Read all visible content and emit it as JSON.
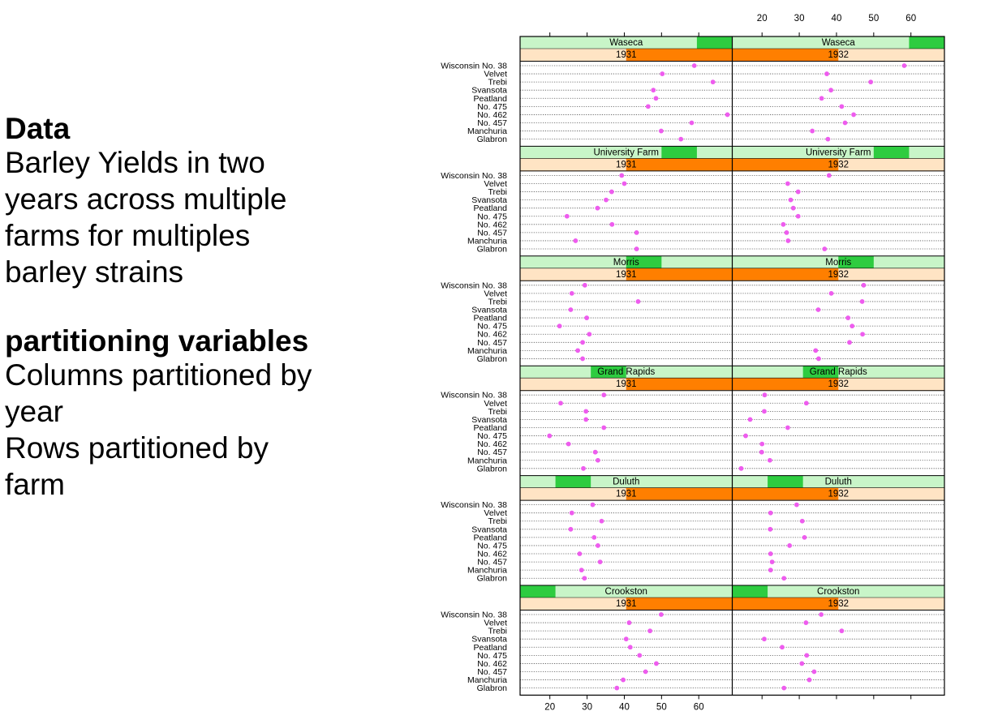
{
  "text": {
    "data_heading": "Data",
    "data_lines": [
      "Barley Yields in two",
      "years across multiple",
      "farms for multiples",
      "barley strains"
    ],
    "partition_heading": "partitioning variables",
    "partition_lines": [
      "Columns partitioned by",
      "year",
      "Rows partitioned by",
      "farm"
    ]
  },
  "colors": {
    "strip_bg": "#c8f5c8",
    "strip_fg": "#2ecc40",
    "year_bg": "#ffe4c4",
    "year_fg": "#ff7f00",
    "point": "#ee5cee"
  },
  "chart_data": {
    "type": "scatter",
    "subtype": "dot plot (trellis)",
    "xlim": [
      12,
      69
    ],
    "x_ticks": [
      20,
      30,
      40,
      50,
      60
    ],
    "x_tick_labels": [
      "20",
      "30",
      "40",
      "50",
      "60"
    ],
    "grid": true,
    "varieties": [
      "Wisconsin No. 38",
      "Velvet",
      "Trebi",
      "Svansota",
      "Peatland",
      "No. 475",
      "No. 462",
      "No. 457",
      "Manchuria",
      "Glabron"
    ],
    "years": [
      "1931",
      "1932"
    ],
    "sites": [
      "Waseca",
      "University Farm",
      "Morris",
      "Grand Rapids",
      "Duluth",
      "Crookston"
    ],
    "panels": [
      {
        "site": "Waseca",
        "year": "1931",
        "values": [
          58.8,
          50.2,
          63.8,
          47.8,
          48.5,
          46.4,
          67.7,
          58.1,
          49.9,
          55.2
        ]
      },
      {
        "site": "Waseca",
        "year": "1932",
        "values": [
          58.2,
          37.4,
          49.2,
          38.5,
          36.0,
          41.4,
          44.6,
          42.3,
          33.5,
          37.7
        ]
      },
      {
        "site": "University Farm",
        "year": "1931",
        "values": [
          39.3,
          40.0,
          36.6,
          35.1,
          32.8,
          24.6,
          36.7,
          43.3,
          26.9,
          43.3
        ]
      },
      {
        "site": "University Farm",
        "year": "1932",
        "values": [
          38.0,
          26.9,
          29.7,
          27.7,
          28.4,
          29.7,
          25.7,
          26.6,
          27.0,
          36.8
        ]
      },
      {
        "site": "Morris",
        "year": "1931",
        "values": [
          29.4,
          25.9,
          43.7,
          25.6,
          29.9,
          22.6,
          30.6,
          28.8,
          27.5,
          28.8
        ]
      },
      {
        "site": "Morris",
        "year": "1932",
        "values": [
          47.3,
          38.6,
          46.9,
          35.1,
          43.1,
          44.2,
          47.0,
          43.5,
          34.4,
          35.2
        ]
      },
      {
        "site": "Grand Rapids",
        "year": "1931",
        "values": [
          34.5,
          22.9,
          29.7,
          29.7,
          34.5,
          19.9,
          25.0,
          32.2,
          32.9,
          29.0
        ]
      },
      {
        "site": "Grand Rapids",
        "year": "1932",
        "values": [
          20.7,
          31.9,
          20.6,
          16.8,
          26.9,
          15.6,
          20.0,
          19.9,
          22.1,
          14.4
        ]
      },
      {
        "site": "Duluth",
        "year": "1931",
        "values": [
          31.5,
          25.9,
          33.9,
          25.6,
          31.9,
          32.9,
          28.0,
          33.5,
          28.5,
          29.3
        ]
      },
      {
        "site": "Duluth",
        "year": "1932",
        "values": [
          29.3,
          22.3,
          30.8,
          22.2,
          31.4,
          27.4,
          22.3,
          22.7,
          22.3,
          25.9
        ]
      },
      {
        "site": "Crookston",
        "year": "1931",
        "values": [
          49.9,
          41.3,
          46.9,
          40.5,
          41.6,
          44.1,
          48.6,
          45.7,
          39.7,
          38.0
        ]
      },
      {
        "site": "Crookston",
        "year": "1932",
        "values": [
          35.9,
          31.8,
          41.4,
          20.6,
          25.4,
          32.0,
          30.7,
          34.0,
          32.7,
          25.9
        ]
      }
    ]
  }
}
